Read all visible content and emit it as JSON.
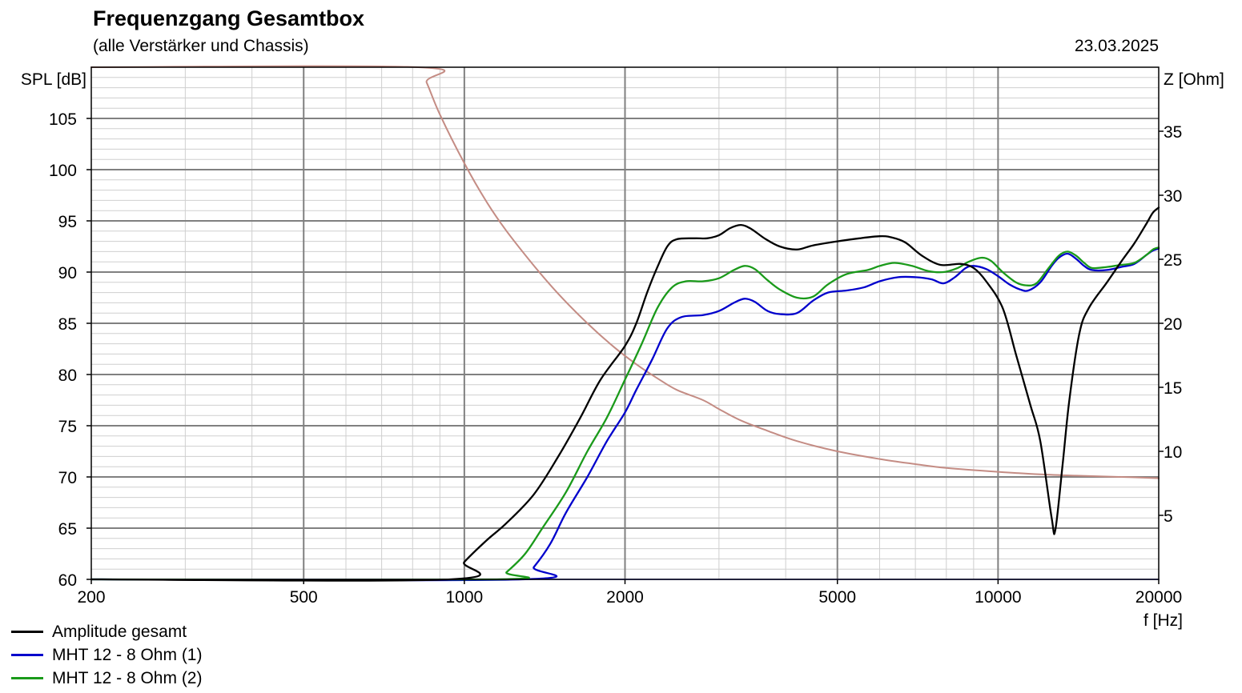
{
  "header": {
    "title": "Frequenzgang Gesamtbox",
    "subtitle": "(alle Verstärker und Chassis)",
    "date": "23.03.2025"
  },
  "chart_data": {
    "type": "line",
    "title": "Frequenzgang Gesamtbox",
    "subtitle": "(alle Verstärker und Chassis)",
    "xlabel": "f [Hz]",
    "ylabel": "SPL [dB]",
    "y2label": "Z [Ohm]",
    "x_scale": "log",
    "xlim": [
      200,
      20000
    ],
    "ylim": [
      60,
      110
    ],
    "y2lim": [
      0,
      40
    ],
    "x_ticks": [
      200,
      500,
      1000,
      2000,
      5000,
      10000,
      20000
    ],
    "x_tick_labels": [
      "200",
      "500",
      "1000",
      "2000",
      "5000",
      "10000",
      "20000"
    ],
    "y_ticks": [
      60,
      65,
      70,
      75,
      80,
      85,
      90,
      95,
      100,
      105
    ],
    "y_tick_labels": [
      "60",
      "65",
      "70",
      "75",
      "80",
      "85",
      "90",
      "95",
      "100",
      "105"
    ],
    "y2_ticks": [
      5,
      10,
      15,
      20,
      25,
      30,
      35
    ],
    "y2_tick_labels": [
      "5",
      "10",
      "15",
      "20",
      "25",
      "30",
      "35"
    ],
    "grid": true,
    "legend_position": "bottom-left",
    "series": [
      {
        "name": "Amplitude gesamt",
        "axis": "left",
        "color": "#000000",
        "points": [
          [
            200,
            60
          ],
          [
            940,
            60
          ],
          [
            1000,
            61.7
          ],
          [
            1100,
            63.8
          ],
          [
            1200,
            65.5
          ],
          [
            1350,
            68.3
          ],
          [
            1500,
            72
          ],
          [
            1650,
            75.8
          ],
          [
            1800,
            79.5
          ],
          [
            2000,
            82.8
          ],
          [
            2100,
            85
          ],
          [
            2200,
            88
          ],
          [
            2300,
            90.5
          ],
          [
            2400,
            92.5
          ],
          [
            2500,
            93.2
          ],
          [
            2700,
            93.3
          ],
          [
            2850,
            93.3
          ],
          [
            3000,
            93.6
          ],
          [
            3150,
            94.3
          ],
          [
            3300,
            94.6
          ],
          [
            3450,
            94.2
          ],
          [
            3650,
            93.3
          ],
          [
            3900,
            92.5
          ],
          [
            4200,
            92.2
          ],
          [
            4500,
            92.6
          ],
          [
            5000,
            93
          ],
          [
            5500,
            93.3
          ],
          [
            6000,
            93.5
          ],
          [
            6300,
            93.4
          ],
          [
            6700,
            92.9
          ],
          [
            7200,
            91.6
          ],
          [
            7800,
            90.7
          ],
          [
            8500,
            90.8
          ],
          [
            9000,
            90.4
          ],
          [
            9500,
            89.1
          ],
          [
            10200,
            86.5
          ],
          [
            10800,
            82
          ],
          [
            11500,
            77
          ],
          [
            12000,
            73.5
          ],
          [
            12600,
            66
          ],
          [
            12800,
            64.8
          ],
          [
            13200,
            71
          ],
          [
            13600,
            77.5
          ],
          [
            14200,
            84
          ],
          [
            14800,
            86.5
          ],
          [
            16000,
            89
          ],
          [
            17000,
            91
          ],
          [
            18000,
            92.8
          ],
          [
            19000,
            94.8
          ],
          [
            19500,
            95.8
          ],
          [
            20000,
            96.3
          ]
        ]
      },
      {
        "name": "MHT 12 - 8 Ohm (1)",
        "axis": "left",
        "color": "#0000cc",
        "points": [
          [
            200,
            60
          ],
          [
            1280,
            60
          ],
          [
            1350,
            61.2
          ],
          [
            1450,
            63.5
          ],
          [
            1550,
            66.5
          ],
          [
            1700,
            70
          ],
          [
            1850,
            73.5
          ],
          [
            2000,
            76.3
          ],
          [
            2100,
            78.5
          ],
          [
            2250,
            81.5
          ],
          [
            2400,
            84.5
          ],
          [
            2550,
            85.6
          ],
          [
            2800,
            85.8
          ],
          [
            3000,
            86.2
          ],
          [
            3200,
            87
          ],
          [
            3350,
            87.4
          ],
          [
            3500,
            87.1
          ],
          [
            3700,
            86.2
          ],
          [
            3900,
            85.9
          ],
          [
            4200,
            86
          ],
          [
            4500,
            87.2
          ],
          [
            4800,
            88
          ],
          [
            5200,
            88.2
          ],
          [
            5600,
            88.5
          ],
          [
            6000,
            89.1
          ],
          [
            6500,
            89.5
          ],
          [
            7000,
            89.5
          ],
          [
            7500,
            89.3
          ],
          [
            7900,
            88.9
          ],
          [
            8300,
            89.5
          ],
          [
            8700,
            90.4
          ],
          [
            9000,
            90.6
          ],
          [
            9500,
            90.3
          ],
          [
            10000,
            89.6
          ],
          [
            10500,
            88.8
          ],
          [
            11000,
            88.3
          ],
          [
            11400,
            88.2
          ],
          [
            12000,
            89
          ],
          [
            12600,
            90.6
          ],
          [
            13000,
            91.4
          ],
          [
            13500,
            91.8
          ],
          [
            14000,
            91.3
          ],
          [
            14500,
            90.6
          ],
          [
            15000,
            90.2
          ],
          [
            16000,
            90.2
          ],
          [
            17000,
            90.5
          ],
          [
            18000,
            90.8
          ],
          [
            19000,
            91.7
          ],
          [
            19500,
            92.1
          ],
          [
            20000,
            92.3
          ]
        ]
      },
      {
        "name": "MHT 12 - 8 Ohm (2)",
        "axis": "left",
        "color": "#1a9a1a",
        "points": [
          [
            200,
            60
          ],
          [
            1150,
            60
          ],
          [
            1200,
            60.7
          ],
          [
            1300,
            62.5
          ],
          [
            1400,
            65
          ],
          [
            1550,
            68.5
          ],
          [
            1700,
            72.5
          ],
          [
            1850,
            75.8
          ],
          [
            2000,
            79.5
          ],
          [
            2150,
            83
          ],
          [
            2300,
            86.5
          ],
          [
            2450,
            88.5
          ],
          [
            2600,
            89.1
          ],
          [
            2800,
            89.1
          ],
          [
            3000,
            89.4
          ],
          [
            3200,
            90.2
          ],
          [
            3350,
            90.6
          ],
          [
            3500,
            90.3
          ],
          [
            3700,
            89.2
          ],
          [
            3900,
            88.3
          ],
          [
            4200,
            87.5
          ],
          [
            4500,
            87.6
          ],
          [
            4800,
            88.8
          ],
          [
            5200,
            89.8
          ],
          [
            5700,
            90.2
          ],
          [
            6000,
            90.6
          ],
          [
            6400,
            90.9
          ],
          [
            6900,
            90.6
          ],
          [
            7400,
            90.1
          ],
          [
            7900,
            90
          ],
          [
            8400,
            90.4
          ],
          [
            8800,
            91
          ],
          [
            9300,
            91.4
          ],
          [
            9700,
            91.1
          ],
          [
            10200,
            90
          ],
          [
            10800,
            89
          ],
          [
            11300,
            88.7
          ],
          [
            11800,
            88.9
          ],
          [
            12400,
            90.3
          ],
          [
            13000,
            91.6
          ],
          [
            13500,
            92
          ],
          [
            14000,
            91.6
          ],
          [
            14500,
            90.9
          ],
          [
            15000,
            90.4
          ],
          [
            16000,
            90.5
          ],
          [
            17000,
            90.7
          ],
          [
            18000,
            90.9
          ],
          [
            19000,
            91.7
          ],
          [
            19500,
            92.2
          ],
          [
            20000,
            92.4
          ]
        ]
      },
      {
        "name": "",
        "axis": "right",
        "color": "#c48c84",
        "points": [
          [
            200,
            40
          ],
          [
            820,
            40
          ],
          [
            850,
            38.8
          ],
          [
            900,
            36.3
          ],
          [
            1000,
            32.5
          ],
          [
            1100,
            29.5
          ],
          [
            1200,
            27.2
          ],
          [
            1350,
            24.5
          ],
          [
            1500,
            22.3
          ],
          [
            1700,
            20
          ],
          [
            1900,
            18.2
          ],
          [
            2100,
            16.8
          ],
          [
            2300,
            15.7
          ],
          [
            2500,
            14.8
          ],
          [
            2800,
            14
          ],
          [
            3000,
            13.3
          ],
          [
            3300,
            12.4
          ],
          [
            3700,
            11.6
          ],
          [
            4200,
            10.8
          ],
          [
            5000,
            10
          ],
          [
            6000,
            9.4
          ],
          [
            7000,
            9
          ],
          [
            8000,
            8.7
          ],
          [
            10000,
            8.4
          ],
          [
            12000,
            8.2
          ],
          [
            14000,
            8.1
          ],
          [
            17000,
            8
          ],
          [
            20000,
            7.9
          ]
        ]
      },
      {
        "name": "",
        "axis": "left",
        "color": "#8c8cf0",
        "points": [
          [
            200,
            60
          ],
          [
            20000,
            60
          ]
        ]
      }
    ]
  }
}
